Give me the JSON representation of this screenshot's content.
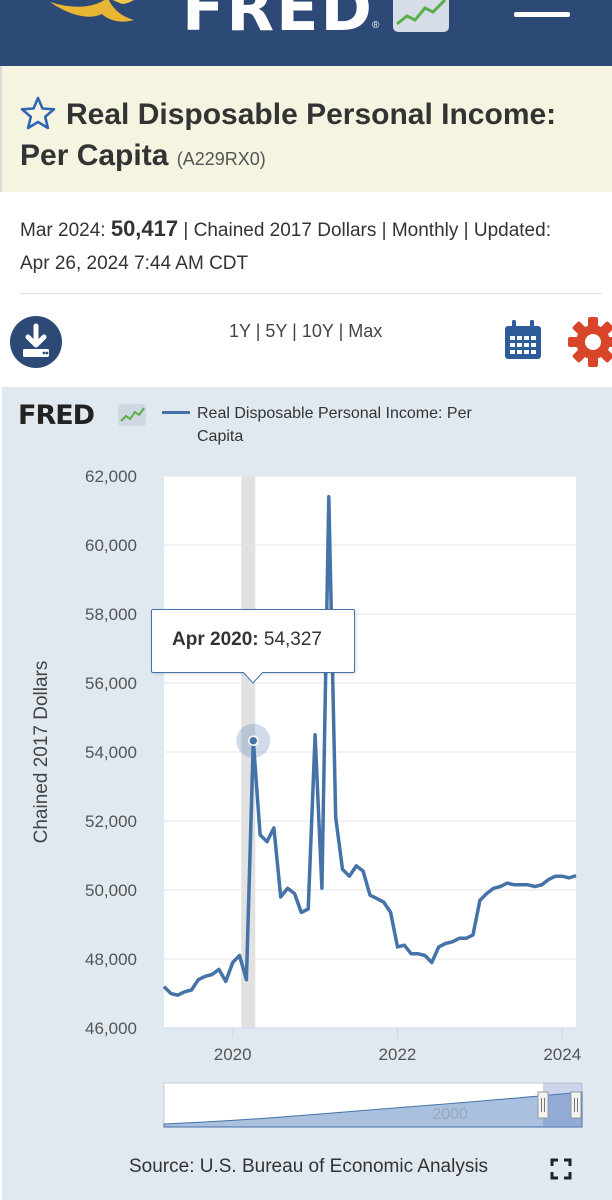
{
  "header": {
    "logo_text": "FRED",
    "registered_mark": "®",
    "menu_icon": "hamburger-menu-icon"
  },
  "series": {
    "title": "Real Disposable Personal Income: Per Capita",
    "id": "(A229RX0)",
    "last_date": "Mar 2024:",
    "last_value": "50,417",
    "units_line": "| Chained 2017 Dollars | Monthly | Updated:",
    "updated": "Apr 26, 2024 7:44 AM CDT"
  },
  "toolbar": {
    "range_1y": "1Y",
    "range_5y": "5Y",
    "range_10y": "10Y",
    "range_max": "Max",
    "sep": "|",
    "download_icon": "download-icon",
    "calendar_icon": "calendar-icon",
    "settings_icon": "gear-icon"
  },
  "chart_header": {
    "fred_logo": "FRED",
    "legend_label": "Real Disposable Personal Income: Per Capita"
  },
  "tooltip": {
    "date": "Apr 2020:",
    "value": "54,327"
  },
  "navigator": {
    "label": "2000"
  },
  "footer": {
    "source": "Source: U.S. Bureau of Economic Analysis",
    "fullscreen_icon": "fullscreen-icon"
  },
  "colors": {
    "header_bg": "#2d4a77",
    "title_band": "#f4f4e0",
    "series_line": "#4572a7",
    "chart_panel": "#e1e9f0",
    "settings_accent": "#d9452b"
  },
  "chart_data": {
    "type": "line",
    "title": "",
    "xlabel": "",
    "ylabel": "Chained 2017 Dollars",
    "ylim": [
      46000,
      62000
    ],
    "yticks": [
      "62,000",
      "60,000",
      "58,000",
      "56,000",
      "54,000",
      "52,000",
      "50,000",
      "48,000",
      "46,000"
    ],
    "xticks": [
      "2020",
      "2022",
      "2024"
    ],
    "highlight": {
      "date": "2020-04",
      "value": 54327
    },
    "grid": true,
    "legend": "top",
    "series": [
      {
        "name": "Real Disposable Personal Income: Per Capita",
        "x": [
          "2019-03",
          "2019-04",
          "2019-05",
          "2019-06",
          "2019-07",
          "2019-08",
          "2019-09",
          "2019-10",
          "2019-11",
          "2019-12",
          "2020-01",
          "2020-02",
          "2020-03",
          "2020-04",
          "2020-05",
          "2020-06",
          "2020-07",
          "2020-08",
          "2020-09",
          "2020-10",
          "2020-11",
          "2020-12",
          "2021-01",
          "2021-02",
          "2021-03",
          "2021-04",
          "2021-05",
          "2021-06",
          "2021-07",
          "2021-08",
          "2021-09",
          "2021-10",
          "2021-11",
          "2021-12",
          "2022-01",
          "2022-02",
          "2022-03",
          "2022-04",
          "2022-05",
          "2022-06",
          "2022-07",
          "2022-08",
          "2022-09",
          "2022-10",
          "2022-11",
          "2022-12",
          "2023-01",
          "2023-02",
          "2023-03",
          "2023-04",
          "2023-05",
          "2023-06",
          "2023-07",
          "2023-08",
          "2023-09",
          "2023-10",
          "2023-11",
          "2023-12",
          "2024-01",
          "2024-02",
          "2024-03"
        ],
        "values": [
          47200,
          47000,
          46950,
          47050,
          47100,
          47400,
          47500,
          47550,
          47700,
          47350,
          47900,
          48100,
          47400,
          54327,
          51600,
          51400,
          51800,
          49800,
          50050,
          49900,
          49350,
          49450,
          54500,
          50050,
          61400,
          52100,
          50600,
          50400,
          50700,
          50550,
          49850,
          49750,
          49650,
          49350,
          48350,
          48400,
          48150,
          48150,
          48100,
          47900,
          48350,
          48450,
          48500,
          48600,
          48600,
          48700,
          49700,
          49900,
          50050,
          50100,
          50200,
          50150,
          50150,
          50150,
          50100,
          50150,
          50300,
          50400,
          50400,
          50350,
          50417
        ]
      }
    ]
  }
}
